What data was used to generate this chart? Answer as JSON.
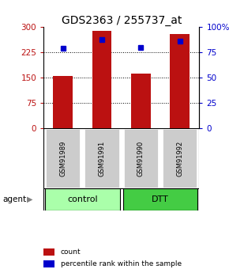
{
  "title": "GDS2363 / 255737_at",
  "samples": [
    "GSM91989",
    "GSM91991",
    "GSM91990",
    "GSM91992"
  ],
  "count_values": [
    155,
    290,
    162,
    280
  ],
  "percentile_values": [
    79,
    88,
    80,
    86
  ],
  "groups": [
    {
      "label": "control",
      "color": "#aaffaa",
      "samples": [
        0,
        1
      ]
    },
    {
      "label": "DTT",
      "color": "#44cc44",
      "samples": [
        2,
        3
      ]
    }
  ],
  "bar_color": "#bb1111",
  "dot_color": "#0000cc",
  "left_ylim": [
    0,
    300
  ],
  "right_ylim": [
    0,
    100
  ],
  "left_yticks": [
    0,
    75,
    150,
    225,
    300
  ],
  "right_yticks": [
    0,
    25,
    50,
    75,
    100
  ],
  "left_yticklabels": [
    "0",
    "75",
    "150",
    "225",
    "300"
  ],
  "right_yticklabels": [
    "0",
    "25",
    "50",
    "75",
    "100%"
  ],
  "grid_values": [
    75,
    150,
    225
  ],
  "bar_width": 0.5,
  "agent_label": "agent",
  "legend_count_label": "count",
  "legend_pct_label": "percentile rank within the sample",
  "sample_box_color": "#cccccc",
  "title_fontsize": 10,
  "tick_fontsize": 7.5,
  "sample_fontsize": 6,
  "group_fontsize": 8,
  "legend_fontsize": 6.5
}
